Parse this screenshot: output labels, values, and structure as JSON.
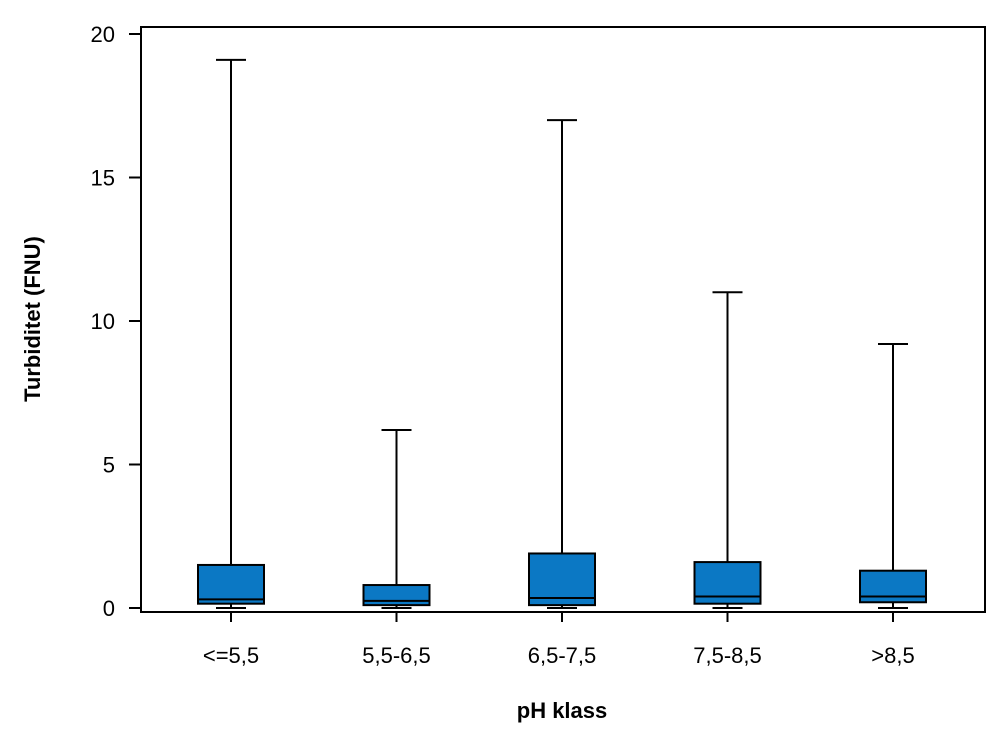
{
  "chart_data": {
    "type": "box",
    "xlabel": "pH klass",
    "ylabel": "Turbiditet (FNU)",
    "ylim": [
      0,
      20
    ],
    "yticks": [
      0,
      5,
      10,
      15,
      20
    ],
    "grid": false,
    "box_color": "#0b78c4",
    "categories": [
      "<=5,5",
      "5,5-6,5",
      "6,5-7,5",
      "7,5-8,5",
      ">8,5"
    ],
    "boxes": [
      {
        "category": "<=5,5",
        "min": 0.0,
        "q1": 0.15,
        "median": 0.3,
        "q3": 1.5,
        "max": 19.1
      },
      {
        "category": "5,5-6,5",
        "min": 0.0,
        "q1": 0.1,
        "median": 0.25,
        "q3": 0.8,
        "max": 6.2
      },
      {
        "category": "6,5-7,5",
        "min": 0.0,
        "q1": 0.1,
        "median": 0.35,
        "q3": 1.9,
        "max": 17.0
      },
      {
        "category": "7,5-8,5",
        "min": 0.0,
        "q1": 0.15,
        "median": 0.4,
        "q3": 1.6,
        "max": 11.0
      },
      {
        "category": ">8,5",
        "min": 0.0,
        "q1": 0.2,
        "median": 0.4,
        "q3": 1.3,
        "max": 9.2
      }
    ]
  }
}
